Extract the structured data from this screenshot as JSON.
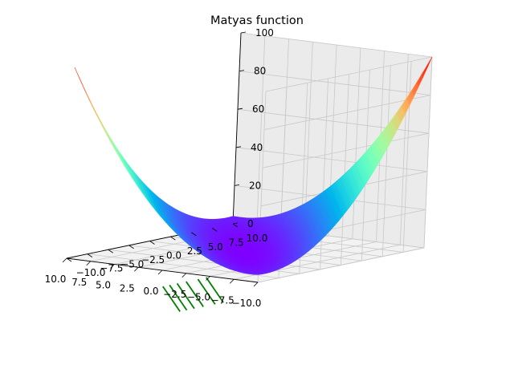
{
  "chart_data": {
    "type": "surface3d",
    "title": "Matyas function",
    "function": "0.26*(x^2+y^2) - 0.48*x*y",
    "x_range": [
      -10,
      10
    ],
    "y_range": [
      -10,
      10
    ],
    "z_range": [
      0,
      100
    ],
    "x_ticks": [
      "−10.0",
      "−7.5",
      "−5.0",
      "−2.5",
      "0.0",
      "2.5",
      "5.0",
      "7.5",
      "10.0"
    ],
    "y_ticks": [
      "−10.0",
      "−7.5",
      "−5.0",
      "−2.5",
      "0.0",
      "2.5",
      "5.0",
      "7.5",
      "10.0"
    ],
    "z_ticks": [
      "0",
      "20",
      "40",
      "60",
      "80",
      "100"
    ],
    "x_tick_values": [
      -10,
      -7.5,
      -5,
      -2.5,
      0,
      2.5,
      5,
      7.5,
      10
    ],
    "y_tick_values": [
      -10,
      -7.5,
      -5,
      -2.5,
      0,
      2.5,
      5,
      7.5,
      10
    ],
    "z_tick_values": [
      0,
      20,
      40,
      60,
      80,
      100
    ],
    "colormap": "rainbow",
    "contour_color": "#008000",
    "contour_levels": [
      5,
      10,
      20,
      30,
      40,
      50
    ],
    "grid": true,
    "pane_color": "#f2f2f2"
  }
}
